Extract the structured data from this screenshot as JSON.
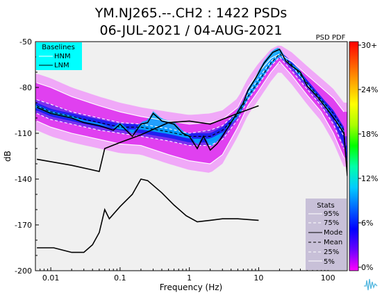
{
  "chart_data": {
    "type": "heatmap",
    "title_line1": "YM.NJ265.--.CH2 : 1422 PSDs",
    "title_line2": "06-JUL-2021 / 04-AUG-2021",
    "xlabel": "Frequency (Hz)",
    "ylabel": "dB",
    "x_scale": "log",
    "xlim": [
      0.006,
      190
    ],
    "ylim": [
      -200,
      -50
    ],
    "x_ticks": [
      {
        "value": 0.01,
        "label": "0.01"
      },
      {
        "value": 0.1,
        "label": "0.1"
      },
      {
        "value": 1,
        "label": "1"
      },
      {
        "value": 10,
        "label": "10"
      },
      {
        "value": 100,
        "label": "100"
      }
    ],
    "y_ticks": [
      {
        "value": -50,
        "label": "-50"
      },
      {
        "value": -80,
        "label": "-80"
      },
      {
        "value": -110,
        "label": "-110"
      },
      {
        "value": -140,
        "label": "-140"
      },
      {
        "value": -170,
        "label": "-170"
      },
      {
        "value": -200,
        "label": "-200"
      }
    ],
    "colorbar": {
      "title": "PSD PDF",
      "ticks": [
        "30+",
        "24%",
        "18%",
        "12%",
        "6%",
        "0%"
      ],
      "colors": [
        "#ff00ff",
        "#6a00ff",
        "#0000ff",
        "#0066ff",
        "#00ccff",
        "#00ffaa",
        "#00ff00",
        "#aaff00",
        "#ffff00",
        "#ffaa00",
        "#ff5500",
        "#ff0000"
      ]
    },
    "baselines_legend": {
      "title": "Baselines",
      "entries": [
        "HNM",
        "LNM"
      ],
      "background": "#00ffff"
    },
    "stats_legend": {
      "title": "Stats",
      "entries": [
        "95%",
        "75%",
        "Mode",
        "Mean",
        "25%",
        "5%"
      ],
      "background": "#c8c0d8"
    },
    "series": [
      {
        "name": "HNM",
        "color": "#000000",
        "style": "solid",
        "points": [
          [
            0.0063,
            -127
          ],
          [
            0.02,
            -131
          ],
          [
            0.05,
            -135
          ],
          [
            0.06,
            -120
          ],
          [
            0.1,
            -116
          ],
          [
            0.2,
            -111
          ],
          [
            0.5,
            -103
          ],
          [
            1,
            -102
          ],
          [
            2,
            -104
          ],
          [
            5,
            -97
          ],
          [
            10,
            -92
          ]
        ]
      },
      {
        "name": "LNM",
        "color": "#000000",
        "style": "solid",
        "points": [
          [
            0.0063,
            -185
          ],
          [
            0.011,
            -185
          ],
          [
            0.02,
            -188
          ],
          [
            0.03,
            -188
          ],
          [
            0.04,
            -183
          ],
          [
            0.05,
            -175
          ],
          [
            0.06,
            -160
          ],
          [
            0.07,
            -166
          ],
          [
            0.1,
            -158
          ],
          [
            0.15,
            -150
          ],
          [
            0.2,
            -140
          ],
          [
            0.25,
            -141
          ],
          [
            0.4,
            -149
          ],
          [
            0.6,
            -157
          ],
          [
            0.9,
            -164
          ],
          [
            1.3,
            -168
          ],
          [
            2,
            -167
          ],
          [
            3,
            -166
          ],
          [
            5,
            -166
          ],
          [
            10,
            -167
          ]
        ]
      },
      {
        "name": "95%",
        "color": "#ffffff",
        "style": "solid",
        "points": [
          [
            0.0063,
            -77
          ],
          [
            0.01,
            -80
          ],
          [
            0.02,
            -86
          ],
          [
            0.05,
            -92
          ],
          [
            0.1,
            -96
          ],
          [
            0.2,
            -99
          ],
          [
            0.5,
            -102
          ],
          [
            1,
            -104
          ],
          [
            2,
            -103
          ],
          [
            3,
            -101
          ],
          [
            5,
            -93
          ],
          [
            7,
            -80
          ],
          [
            10,
            -70
          ],
          [
            15,
            -61
          ],
          [
            20,
            -58
          ],
          [
            30,
            -63
          ],
          [
            50,
            -72
          ],
          [
            80,
            -80
          ],
          [
            120,
            -87
          ],
          [
            170,
            -96
          ]
        ]
      },
      {
        "name": "75%",
        "color": "#ffffff",
        "style": "dashed",
        "points": [
          [
            0.0063,
            -88
          ],
          [
            0.01,
            -91
          ],
          [
            0.02,
            -96
          ],
          [
            0.05,
            -100
          ],
          [
            0.1,
            -103
          ],
          [
            0.2,
            -104
          ],
          [
            0.5,
            -107
          ],
          [
            1,
            -110
          ],
          [
            2,
            -108
          ],
          [
            3,
            -105
          ],
          [
            5,
            -96
          ],
          [
            7,
            -84
          ],
          [
            10,
            -74
          ],
          [
            15,
            -63
          ],
          [
            20,
            -58
          ],
          [
            30,
            -66
          ],
          [
            50,
            -78
          ],
          [
            80,
            -90
          ],
          [
            120,
            -100
          ],
          [
            170,
            -112
          ]
        ]
      },
      {
        "name": "Mode",
        "color": "#000000",
        "style": "solid",
        "points": [
          [
            0.0063,
            -93
          ],
          [
            0.01,
            -97
          ],
          [
            0.02,
            -100
          ],
          [
            0.03,
            -103
          ],
          [
            0.05,
            -105
          ],
          [
            0.08,
            -108
          ],
          [
            0.1,
            -104
          ],
          [
            0.15,
            -112
          ],
          [
            0.2,
            -104
          ],
          [
            0.25,
            -103
          ],
          [
            0.3,
            -97
          ],
          [
            0.4,
            -102
          ],
          [
            0.6,
            -104
          ],
          [
            0.8,
            -110
          ],
          [
            1,
            -112
          ],
          [
            1.3,
            -120
          ],
          [
            1.6,
            -112
          ],
          [
            2,
            -121
          ],
          [
            2.5,
            -117
          ],
          [
            3,
            -112
          ],
          [
            4,
            -103
          ],
          [
            5,
            -96
          ],
          [
            6,
            -90
          ],
          [
            7,
            -82
          ],
          [
            9,
            -74
          ],
          [
            12,
            -64
          ],
          [
            16,
            -57
          ],
          [
            20,
            -55
          ],
          [
            25,
            -63
          ],
          [
            30,
            -66
          ],
          [
            40,
            -70
          ],
          [
            50,
            -79
          ],
          [
            70,
            -86
          ],
          [
            100,
            -95
          ],
          [
            130,
            -102
          ],
          [
            170,
            -110
          ],
          [
            190,
            -138
          ]
        ]
      },
      {
        "name": "Mean",
        "color": "#000000",
        "style": "dashed",
        "points": [
          [
            0.0063,
            -92
          ],
          [
            0.01,
            -96
          ],
          [
            0.02,
            -99
          ],
          [
            0.05,
            -103
          ],
          [
            0.1,
            -106
          ],
          [
            0.2,
            -106
          ],
          [
            0.5,
            -109
          ],
          [
            1,
            -112
          ],
          [
            2,
            -112
          ],
          [
            3,
            -108
          ],
          [
            5,
            -98
          ],
          [
            7,
            -86
          ],
          [
            10,
            -76
          ],
          [
            15,
            -64
          ],
          [
            20,
            -58
          ],
          [
            30,
            -65
          ],
          [
            50,
            -77
          ],
          [
            80,
            -88
          ],
          [
            120,
            -97
          ],
          [
            170,
            -108
          ],
          [
            190,
            -136
          ]
        ]
      },
      {
        "name": "25%",
        "color": "#ffffff",
        "style": "dashed",
        "points": [
          [
            0.0063,
            -97
          ],
          [
            0.01,
            -101
          ],
          [
            0.02,
            -104
          ],
          [
            0.05,
            -108
          ],
          [
            0.1,
            -110
          ],
          [
            0.2,
            -112
          ],
          [
            0.5,
            -115
          ],
          [
            1,
            -118
          ],
          [
            2,
            -118
          ],
          [
            3,
            -114
          ],
          [
            5,
            -101
          ],
          [
            7,
            -88
          ],
          [
            10,
            -78
          ],
          [
            15,
            -66
          ],
          [
            20,
            -60
          ],
          [
            30,
            -69
          ],
          [
            50,
            -81
          ],
          [
            80,
            -92
          ],
          [
            120,
            -104
          ],
          [
            170,
            -120
          ]
        ]
      },
      {
        "name": "5%",
        "color": "#ffffff",
        "style": "solid",
        "points": [
          [
            0.0063,
            -102
          ],
          [
            0.01,
            -106
          ],
          [
            0.02,
            -110
          ],
          [
            0.05,
            -114
          ],
          [
            0.1,
            -117
          ],
          [
            0.2,
            -118
          ],
          [
            0.5,
            -124
          ],
          [
            1,
            -128
          ],
          [
            2,
            -130
          ],
          [
            3,
            -124
          ],
          [
            5,
            -106
          ],
          [
            7,
            -92
          ],
          [
            10,
            -82
          ],
          [
            15,
            -70
          ],
          [
            20,
            -63
          ],
          [
            30,
            -72
          ],
          [
            50,
            -85
          ],
          [
            80,
            -96
          ],
          [
            120,
            -110
          ],
          [
            170,
            -126
          ]
        ]
      }
    ]
  }
}
